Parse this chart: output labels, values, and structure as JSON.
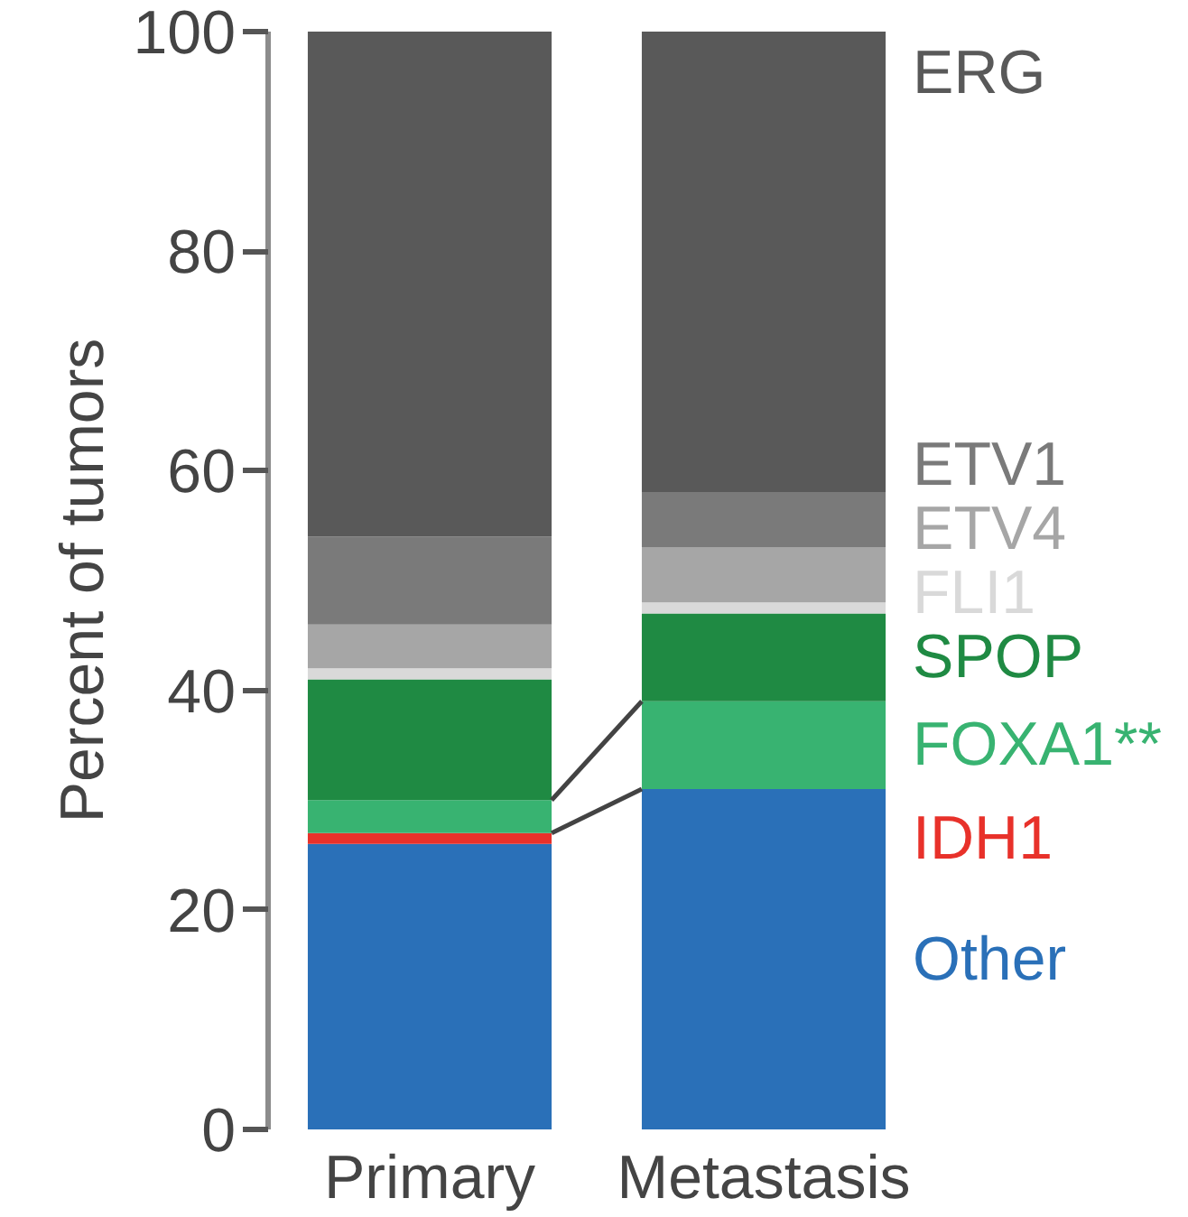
{
  "chart_data": {
    "type": "bar",
    "stacked": true,
    "categories": [
      "Primary",
      "Metastasis"
    ],
    "ylabel": "Percent of tumors",
    "ylim": [
      0,
      100
    ],
    "yticks": [
      0,
      20,
      40,
      60,
      80,
      100
    ],
    "series": [
      {
        "name": "Other",
        "color": "#2a70b8",
        "values": [
          26,
          31
        ]
      },
      {
        "name": "IDH1",
        "color": "#e8312a",
        "values": [
          1,
          0
        ]
      },
      {
        "name": "FOXA1**",
        "color": "#38b371",
        "values": [
          3,
          8
        ]
      },
      {
        "name": "SPOP",
        "color": "#1f8a43",
        "values": [
          11,
          8
        ]
      },
      {
        "name": "FLI1",
        "color": "#d9d9d9",
        "values": [
          1,
          1
        ]
      },
      {
        "name": "ETV4",
        "color": "#a6a6a6",
        "values": [
          4,
          5
        ]
      },
      {
        "name": "ETV1",
        "color": "#7a7a7a",
        "values": [
          8,
          5
        ]
      },
      {
        "name": "ERG",
        "color": "#595959",
        "values": [
          46,
          42
        ]
      }
    ]
  }
}
